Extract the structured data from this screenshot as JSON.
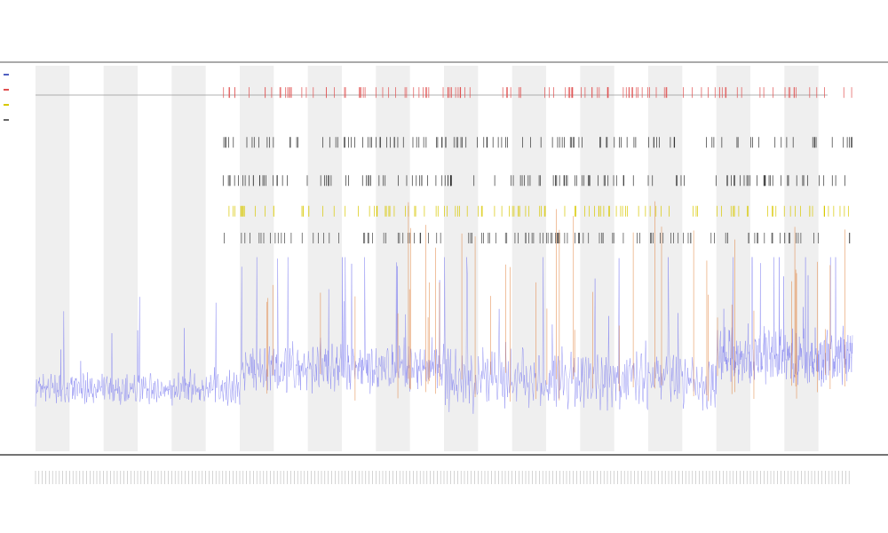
{
  "chart_data": {
    "type": "line",
    "title": "",
    "subtitle_lines": [
      "",
      ""
    ],
    "xlabel": "",
    "ylabel": "",
    "grid": false,
    "legend_position": "top-left",
    "x": {
      "min": 0,
      "max": 240,
      "tick_count": 240
    },
    "y": {
      "min": 0,
      "max": 100
    },
    "shaded_bands": [
      [
        0,
        10
      ],
      [
        20,
        30
      ],
      [
        40,
        50
      ],
      [
        60,
        70
      ],
      [
        80,
        90
      ],
      [
        100,
        110
      ],
      [
        120,
        130
      ],
      [
        140,
        150
      ],
      [
        160,
        170
      ],
      [
        180,
        190
      ],
      [
        200,
        210
      ],
      [
        220,
        230
      ]
    ],
    "series": [
      {
        "style": "line",
        "color": "#7f7ff0",
        "segments": [
          {
            "x0": 0,
            "x1": 60,
            "base": 11,
            "amp": 9
          },
          {
            "x0": 60,
            "x1": 120,
            "base": 14,
            "amp": 14
          },
          {
            "x0": 120,
            "x1": 200,
            "base": 9,
            "amp": 18
          },
          {
            "x0": 200,
            "x1": 240,
            "base": 16,
            "amp": 16
          }
        ]
      },
      {
        "style": "ticks",
        "color": "#e05050",
        "y": 93
      },
      {
        "style": "ticks",
        "color": "#333333",
        "y": 80
      },
      {
        "style": "ticks",
        "color": "#333333",
        "y": 70
      },
      {
        "style": "ticks",
        "color": "#d8c800",
        "y": 62
      },
      {
        "style": "ticks",
        "color": "#444444",
        "y": 55
      },
      {
        "style": "spikes",
        "color": "#e0803a"
      }
    ],
    "legend": [
      {
        "color": "#5060c0",
        "label": ""
      },
      {
        "color": "#e05050",
        "label": ""
      },
      {
        "color": "#d8c800",
        "label": ""
      },
      {
        "color": "#666666",
        "label": ""
      }
    ]
  }
}
